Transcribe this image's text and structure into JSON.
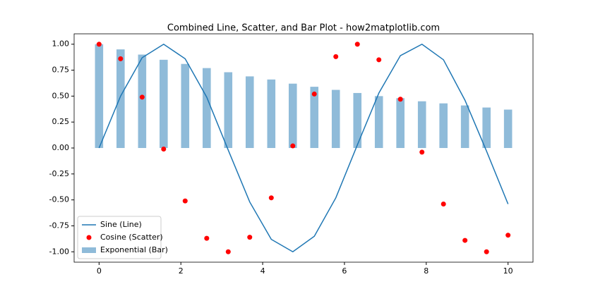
{
  "chart_data": {
    "type": "combo",
    "title": "Combined Line, Scatter, and Bar Plot - how2matplotlib.com",
    "x": [
      0,
      0.526,
      1.053,
      1.579,
      2.105,
      2.632,
      3.158,
      3.684,
      4.211,
      4.737,
      5.263,
      5.789,
      6.316,
      6.842,
      7.368,
      7.895,
      8.421,
      8.947,
      9.474,
      10
    ],
    "series": [
      {
        "name": "Sine (Line)",
        "type": "line",
        "color": "#1f77b4",
        "values": [
          0,
          0.5,
          0.87,
          1.0,
          0.86,
          0.49,
          -0.02,
          -0.52,
          -0.88,
          -1.0,
          -0.85,
          -0.48,
          0.03,
          0.53,
          0.89,
          1.0,
          0.85,
          0.46,
          -0.03,
          -0.54
        ]
      },
      {
        "name": "Cosine (Scatter)",
        "type": "scatter",
        "color": "#ff0000",
        "values": [
          1.0,
          0.86,
          0.49,
          -0.01,
          -0.51,
          -0.87,
          -1.0,
          -0.86,
          -0.48,
          0.02,
          0.52,
          0.88,
          1.0,
          0.85,
          0.47,
          -0.04,
          -0.54,
          -0.89,
          -1.0,
          -0.84
        ]
      },
      {
        "name": "Exponential (Bar)",
        "type": "bar",
        "color": "#8fbbd9",
        "values": [
          1.0,
          0.95,
          0.9,
          0.85,
          0.81,
          0.77,
          0.73,
          0.69,
          0.66,
          0.62,
          0.59,
          0.56,
          0.53,
          0.5,
          0.48,
          0.45,
          0.43,
          0.41,
          0.39,
          0.37
        ]
      }
    ],
    "xlim": [
      -0.61,
      10.61
    ],
    "ylim": [
      -1.1,
      1.1
    ],
    "xticks": [
      0,
      2,
      4,
      6,
      8,
      10
    ],
    "yticks": [
      {
        "value": -1,
        "label": "-1.00"
      },
      {
        "value": -0.75,
        "label": "-0.75"
      },
      {
        "value": -0.5,
        "label": "-0.50"
      },
      {
        "value": -0.25,
        "label": "-0.25"
      },
      {
        "value": 0,
        "label": "0.00"
      },
      {
        "value": 0.25,
        "label": "0.25"
      },
      {
        "value": 0.5,
        "label": "0.50"
      },
      {
        "value": 0.75,
        "label": "0.75"
      },
      {
        "value": 1,
        "label": "1.00"
      }
    ],
    "legend": "lower left"
  }
}
